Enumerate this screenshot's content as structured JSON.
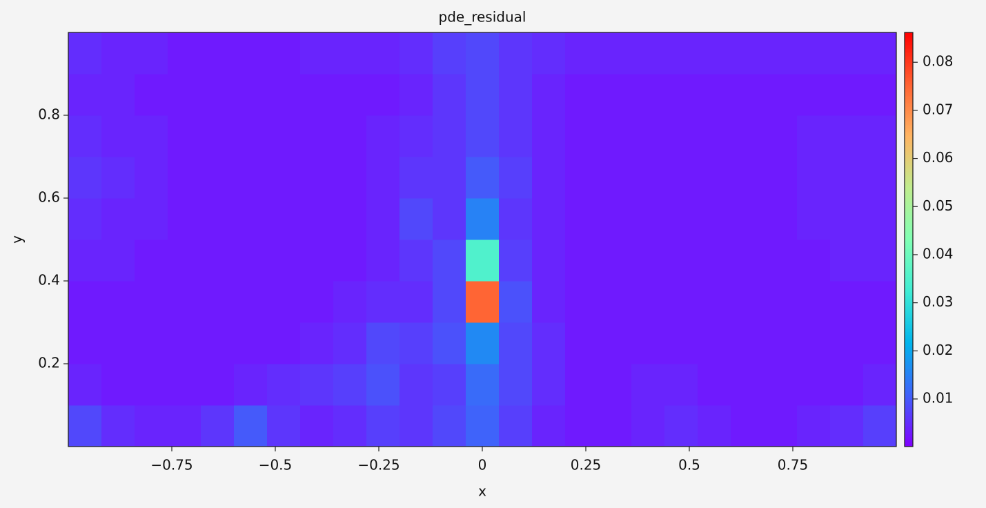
{
  "chart_data": {
    "type": "heatmap",
    "title": "pde_residual",
    "x_label": "x",
    "y_label": "y",
    "x": [
      -0.96,
      -0.88,
      -0.8,
      -0.72,
      -0.64,
      -0.56,
      -0.48,
      -0.4,
      -0.32,
      -0.24,
      -0.16,
      -0.08,
      0,
      0.08,
      0.16,
      0.24,
      0.32,
      0.4,
      0.48,
      0.56,
      0.64,
      0.72,
      0.8,
      0.88,
      0.96
    ],
    "y": [
      0.05,
      0.15,
      0.25,
      0.35,
      0.45,
      0.55,
      0.65,
      0.75,
      0.85,
      0.95
    ],
    "z": [
      [
        0.008,
        0.005,
        0.004,
        0.004,
        0.006,
        0.01,
        0.006,
        0.004,
        0.005,
        0.007,
        0.006,
        0.008,
        0.011,
        0.007,
        0.004,
        0.003,
        0.003,
        0.004,
        0.005,
        0.004,
        0.003,
        0.003,
        0.004,
        0.005,
        0.007
      ],
      [
        0.004,
        0.003,
        0.003,
        0.003,
        0.003,
        0.004,
        0.005,
        0.006,
        0.007,
        0.009,
        0.006,
        0.007,
        0.012,
        0.008,
        0.005,
        0.003,
        0.003,
        0.004,
        0.004,
        0.003,
        0.003,
        0.003,
        0.003,
        0.003,
        0.004
      ],
      [
        0.003,
        0.003,
        0.003,
        0.003,
        0.003,
        0.003,
        0.003,
        0.004,
        0.005,
        0.008,
        0.007,
        0.009,
        0.016,
        0.008,
        0.005,
        0.003,
        0.003,
        0.003,
        0.003,
        0.003,
        0.003,
        0.003,
        0.003,
        0.003,
        0.003
      ],
      [
        0.003,
        0.003,
        0.003,
        0.003,
        0.003,
        0.003,
        0.003,
        0.003,
        0.004,
        0.005,
        0.005,
        0.008,
        0.075,
        0.009,
        0.004,
        0.003,
        0.003,
        0.003,
        0.003,
        0.003,
        0.003,
        0.003,
        0.003,
        0.003,
        0.003
      ],
      [
        0.004,
        0.004,
        0.003,
        0.003,
        0.003,
        0.003,
        0.003,
        0.003,
        0.003,
        0.004,
        0.006,
        0.008,
        0.035,
        0.007,
        0.004,
        0.003,
        0.003,
        0.003,
        0.003,
        0.003,
        0.003,
        0.003,
        0.003,
        0.004,
        0.004
      ],
      [
        0.005,
        0.004,
        0.004,
        0.003,
        0.003,
        0.003,
        0.003,
        0.003,
        0.003,
        0.004,
        0.008,
        0.006,
        0.015,
        0.006,
        0.004,
        0.003,
        0.003,
        0.003,
        0.003,
        0.003,
        0.003,
        0.003,
        0.004,
        0.004,
        0.004
      ],
      [
        0.006,
        0.005,
        0.004,
        0.003,
        0.003,
        0.003,
        0.003,
        0.003,
        0.003,
        0.004,
        0.006,
        0.006,
        0.01,
        0.007,
        0.004,
        0.003,
        0.003,
        0.003,
        0.003,
        0.003,
        0.003,
        0.003,
        0.004,
        0.004,
        0.004
      ],
      [
        0.005,
        0.004,
        0.004,
        0.003,
        0.003,
        0.003,
        0.003,
        0.003,
        0.003,
        0.004,
        0.005,
        0.006,
        0.008,
        0.006,
        0.004,
        0.003,
        0.003,
        0.003,
        0.003,
        0.003,
        0.003,
        0.003,
        0.004,
        0.004,
        0.004
      ],
      [
        0.004,
        0.004,
        0.003,
        0.003,
        0.003,
        0.003,
        0.003,
        0.003,
        0.003,
        0.003,
        0.004,
        0.006,
        0.008,
        0.006,
        0.004,
        0.003,
        0.003,
        0.003,
        0.003,
        0.003,
        0.003,
        0.003,
        0.003,
        0.003,
        0.003
      ],
      [
        0.005,
        0.004,
        0.004,
        0.003,
        0.003,
        0.003,
        0.003,
        0.004,
        0.004,
        0.004,
        0.005,
        0.007,
        0.008,
        0.006,
        0.005,
        0.004,
        0.004,
        0.004,
        0.004,
        0.004,
        0.004,
        0.004,
        0.004,
        0.004,
        0.004
      ]
    ],
    "xlim": [
      -1,
      1
    ],
    "ylim": [
      0,
      1
    ],
    "xticks": [
      {
        "value": -0.75,
        "label": "−0.75"
      },
      {
        "value": -0.5,
        "label": "−0.5"
      },
      {
        "value": -0.25,
        "label": "−0.25"
      },
      0,
      0.25,
      0.5,
      0.75
    ],
    "yticks": [
      0.2,
      0.4,
      0.6,
      0.8
    ],
    "clim": [
      0.0001,
      0.0862
    ],
    "cticks": [
      0.01,
      0.02,
      0.03,
      0.04,
      0.05,
      0.06,
      0.07,
      0.08
    ],
    "colormap": [
      "#8000ff",
      "#4062fa",
      "#00b4ec",
      "#40ecd4",
      "#80ffb4",
      "#c0ec8e",
      "#ffb462",
      "#ff6232",
      "#ff0000"
    ]
  }
}
